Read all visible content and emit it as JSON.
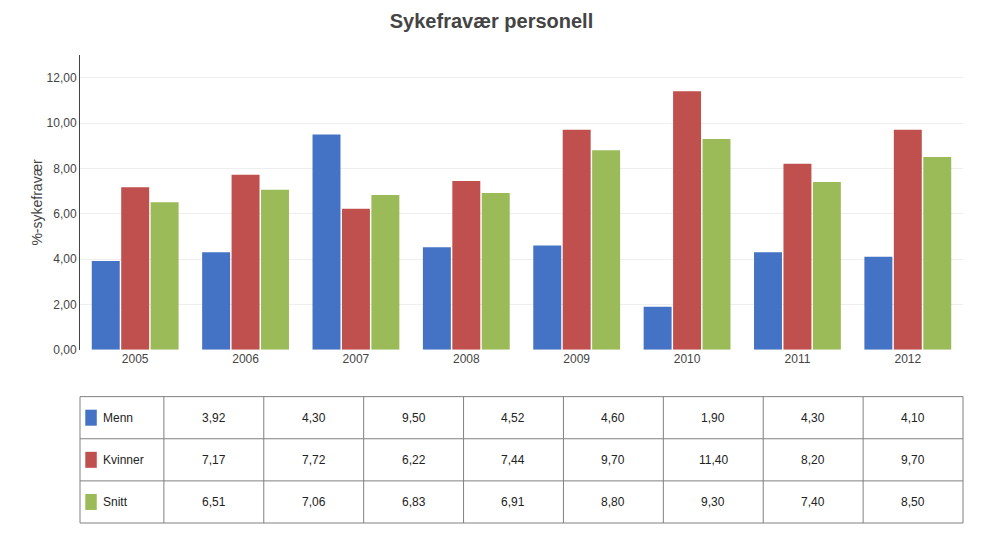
{
  "chart_data": {
    "type": "bar",
    "title": "Sykefravær personell",
    "ylabel": "%-sykefravær",
    "categories": [
      "2005",
      "2006",
      "2007",
      "2008",
      "2009",
      "2010",
      "2011",
      "2012"
    ],
    "series": [
      {
        "name": "Menn",
        "color": "#4472C4",
        "values": [
          3.92,
          4.3,
          9.5,
          4.52,
          4.6,
          1.9,
          4.3,
          4.1
        ],
        "value_labels": [
          "3,92",
          "4,30",
          "9,50",
          "4,52",
          "4,60",
          "1,90",
          "4,30",
          "4,10"
        ]
      },
      {
        "name": "Kvinner",
        "color": "#C0504D",
        "values": [
          7.17,
          7.72,
          6.22,
          7.44,
          9.7,
          11.4,
          8.2,
          9.7
        ],
        "value_labels": [
          "7,17",
          "7,72",
          "6,22",
          "7,44",
          "9,70",
          "11,40",
          "8,20",
          "9,70"
        ]
      },
      {
        "name": "Snitt",
        "color": "#9BBB59",
        "values": [
          6.51,
          7.06,
          6.83,
          6.91,
          8.8,
          9.3,
          7.4,
          8.5
        ],
        "value_labels": [
          "6,51",
          "7,06",
          "6,83",
          "6,91",
          "8,80",
          "9,30",
          "7,40",
          "8,50"
        ]
      }
    ],
    "ylim": [
      0,
      13
    ],
    "yticks": [
      {
        "value": 0,
        "label": "0,00"
      },
      {
        "value": 2,
        "label": "2,00"
      },
      {
        "value": 4,
        "label": "4,00"
      },
      {
        "value": 6,
        "label": "6,00"
      },
      {
        "value": 8,
        "label": "8,00"
      },
      {
        "value": 10,
        "label": "10,00"
      },
      {
        "value": 12,
        "label": "12,00"
      }
    ],
    "grid": true
  }
}
